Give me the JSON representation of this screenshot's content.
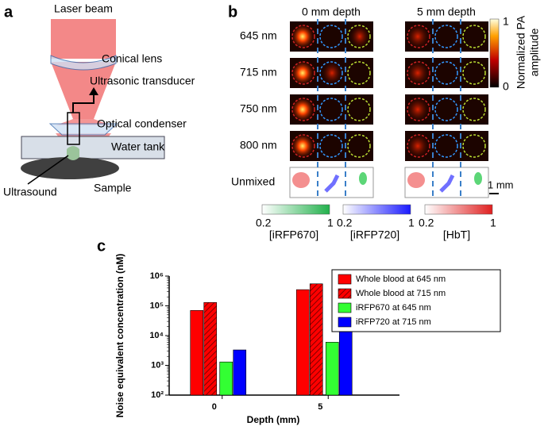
{
  "panels": [
    "a",
    "b",
    "c"
  ],
  "diagram": {
    "laser": "Laser beam",
    "lens": "Conical lens",
    "transducer": "Ultrasonic transducer",
    "condenser": "Optical condenser",
    "tank": "Water tank",
    "ultrasound": "Ultrasound",
    "sample": "Sample"
  },
  "images": {
    "columns": [
      "0 mm depth",
      "5 mm depth"
    ],
    "rows": [
      "645 nm",
      "715 nm",
      "750 nm",
      "800 nm",
      "Unmixed"
    ],
    "scale_bar": "1 mm",
    "colorbar": {
      "title": [
        "Normalized PA",
        "amplitude"
      ],
      "range": [
        0,
        1
      ]
    },
    "channels": [
      {
        "name": "[iRFP670]",
        "range": [
          0.2,
          1
        ],
        "color": "#22b14c"
      },
      {
        "name": "[iRFP720]",
        "range": [
          0.2,
          1
        ],
        "color": "#1a1aff"
      },
      {
        "name": "[HbT]",
        "range": [
          0.2,
          1
        ],
        "color": "#e02020"
      }
    ]
  },
  "chart_data": {
    "type": "bar",
    "xlabel": "Depth (mm)",
    "ylabel": "Noise equivalent  concentration (nM)",
    "categories": [
      "0",
      "5"
    ],
    "series": [
      {
        "name": "Whole blood at 645 nm",
        "color": "#ff0000",
        "values": [
          70000,
          350000
        ]
      },
      {
        "name": "Whole blood at 715 nm",
        "color": "#ff0000",
        "hatch": true,
        "values": [
          130000,
          550000
        ]
      },
      {
        "name": "iRFP670 at 645 nm",
        "color": "#33ff33",
        "values": [
          1300,
          6000
        ]
      },
      {
        "name": "iRFP720 at 715 nm",
        "color": "#0000ff",
        "values": [
          3300,
          15000
        ]
      }
    ],
    "ylim": [
      100,
      1000000
    ],
    "log_y": true,
    "yticks": [
      {
        "value": 100,
        "label": "10²"
      },
      {
        "value": 1000,
        "label": "10³"
      },
      {
        "value": 10000,
        "label": "10⁴"
      },
      {
        "value": 100000,
        "label": "10⁵"
      },
      {
        "value": 1000000,
        "label": "10⁶"
      }
    ],
    "legend": "upper right"
  }
}
